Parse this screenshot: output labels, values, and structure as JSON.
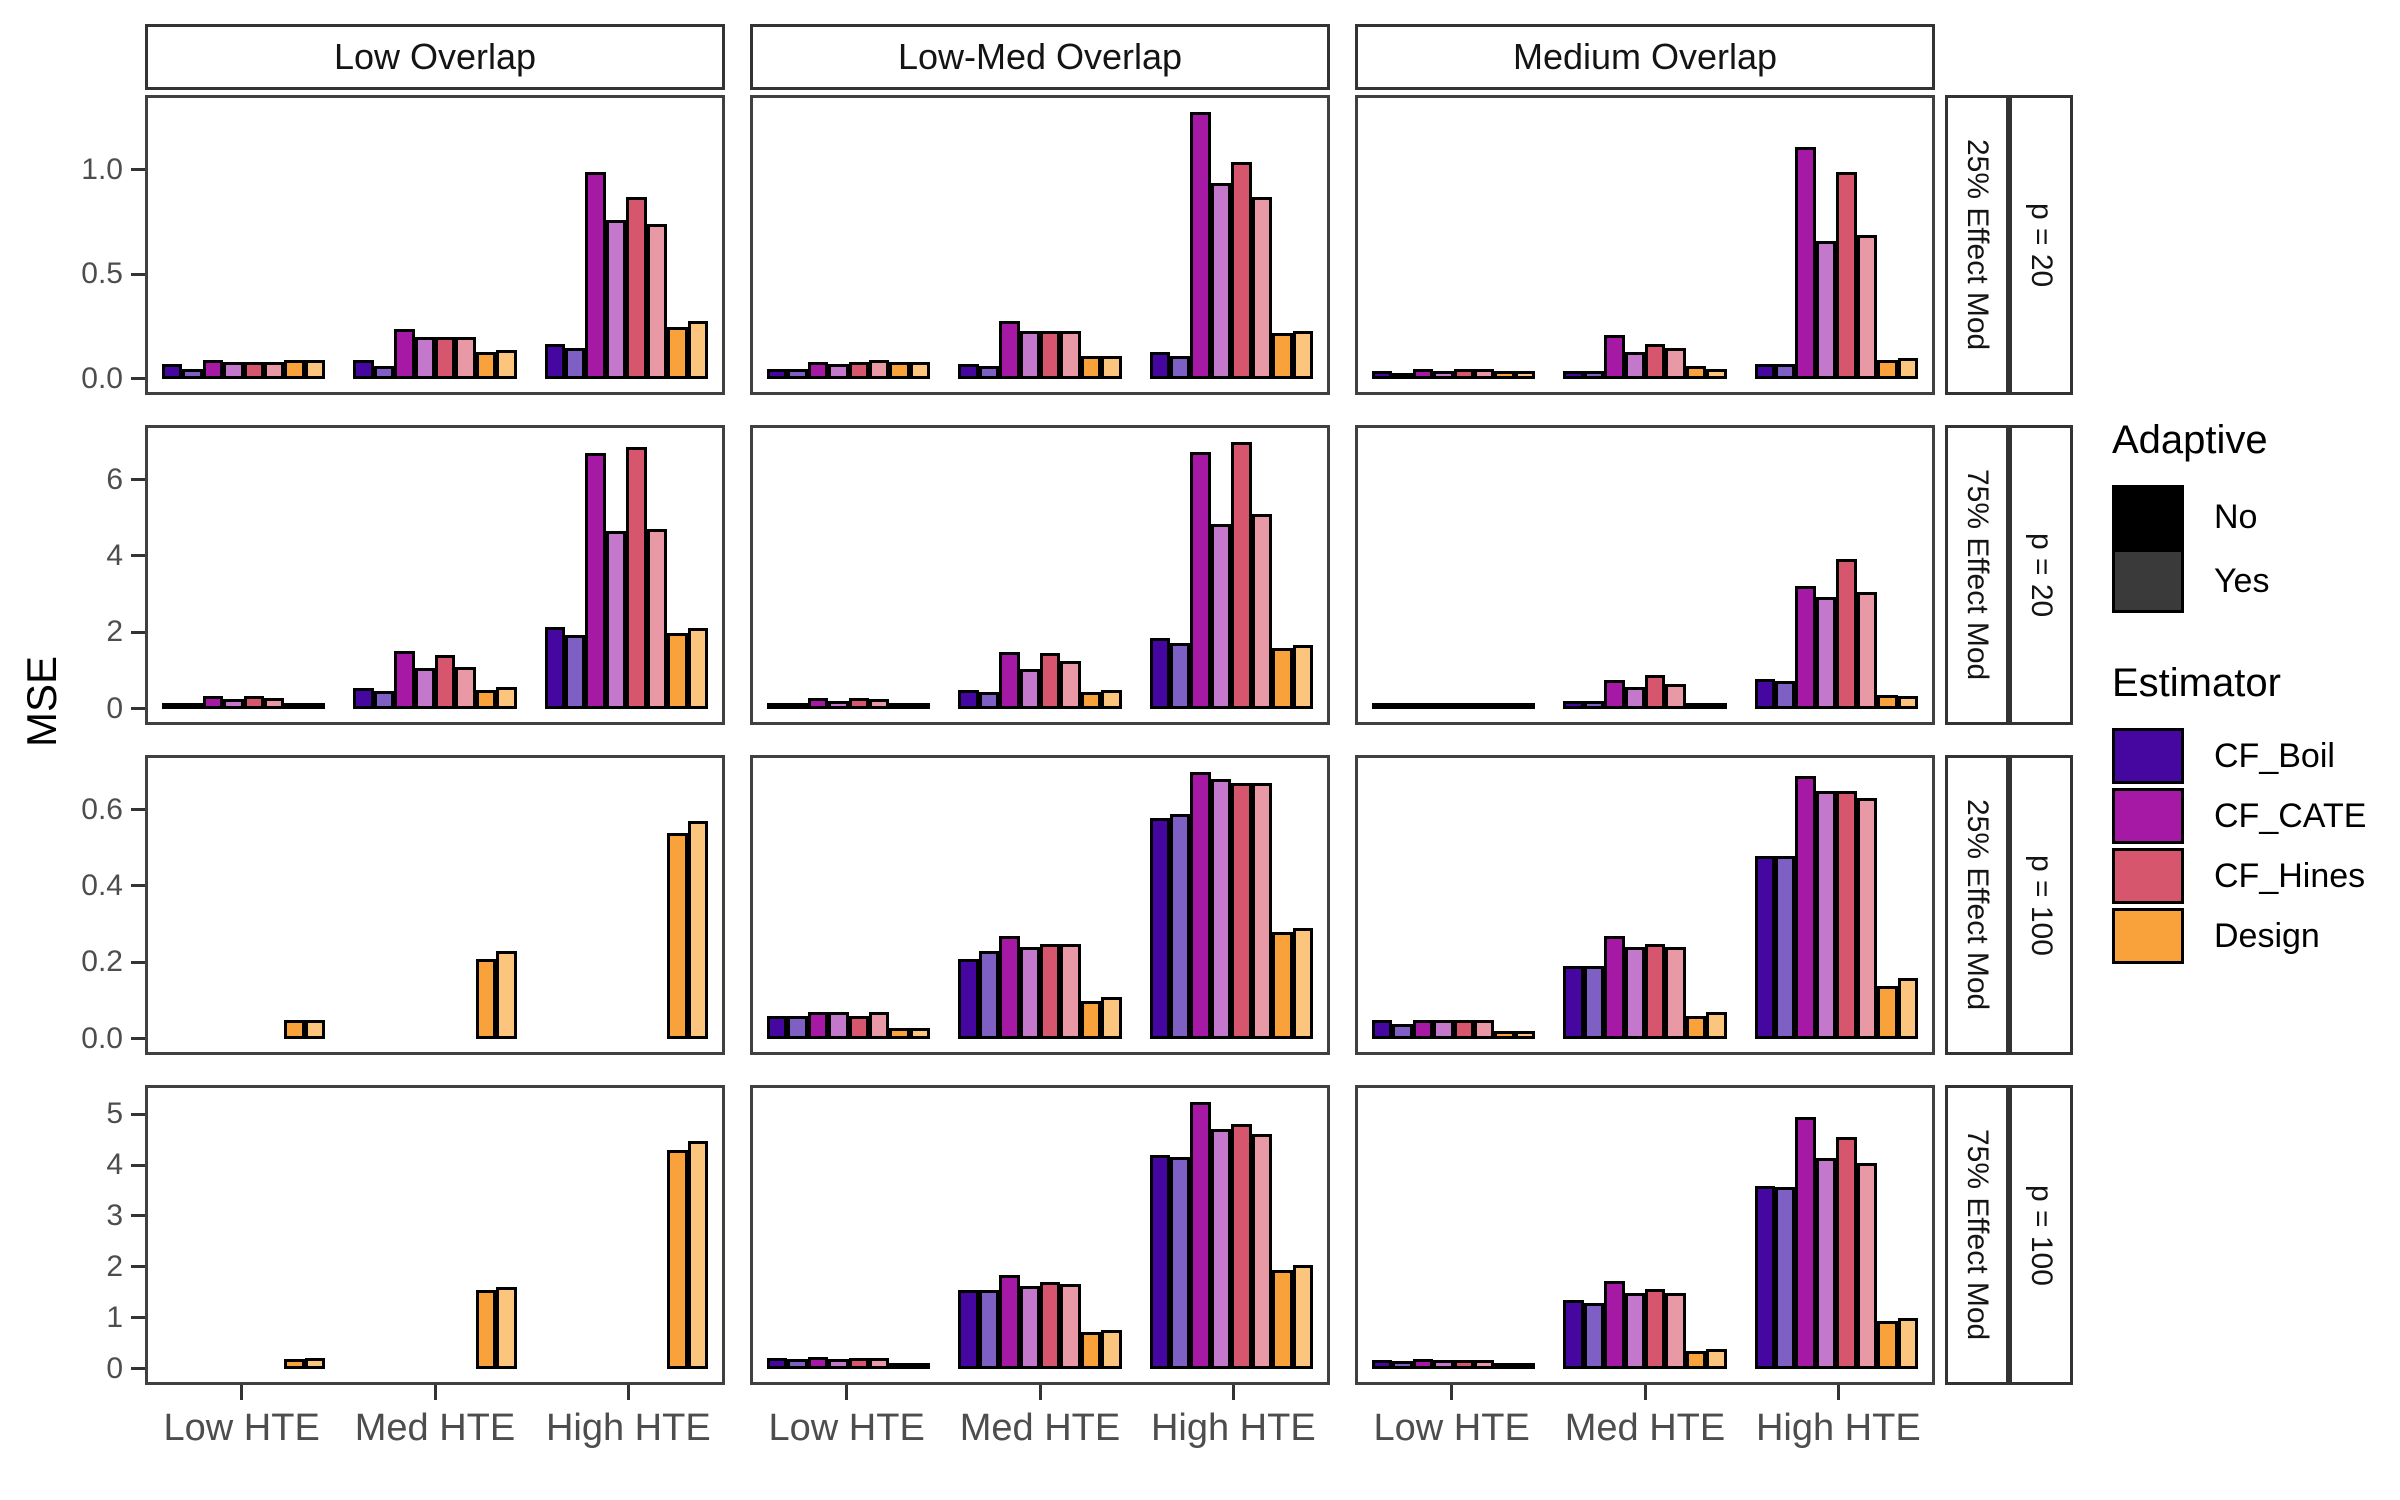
{
  "figure": {
    "ylab": "MSE",
    "legend": {
      "adaptive_title": "Adaptive",
      "adaptive_items": [
        {
          "label": "No",
          "color": "#000000"
        },
        {
          "label": "Yes",
          "color": "#3a3a3a"
        }
      ],
      "estimator_title": "Estimator",
      "estimator_items": [
        {
          "label": "CF_Boil",
          "color": "#4606a0"
        },
        {
          "label": "CF_CATE",
          "color": "#a619a5"
        },
        {
          "label": "CF_Hines",
          "color": "#d5566d"
        },
        {
          "label": "Design",
          "color": "#f9a23b"
        }
      ]
    }
  },
  "chart_data": {
    "type": "bar",
    "title": "",
    "xlabel": "",
    "ylabel": "MSE",
    "grid": false,
    "legend_position": "right",
    "col_facets": [
      "Low Overlap",
      "Low-Med Overlap",
      "Medium Overlap"
    ],
    "x_categories": [
      "Low HTE",
      "Med HTE",
      "High HTE"
    ],
    "series": [
      "CF_Boil / Adaptive No",
      "CF_Boil / Adaptive Yes",
      "CF_CATE / Adaptive No",
      "CF_CATE / Adaptive Yes",
      "CF_Hines / Adaptive No",
      "CF_Hines / Adaptive Yes",
      "Design / Adaptive No",
      "Design / Adaptive Yes"
    ],
    "bar_colors": [
      "#4606a0",
      "#7e5fc4",
      "#a619a5",
      "#c478cc",
      "#d5566d",
      "#e998a5",
      "#f9a23b",
      "#fbc57e"
    ],
    "row_facets": [
      {
        "effect_mod": "25% Effect Mod",
        "p": "p = 20",
        "ytick_labels": [
          "0.0",
          "0.5",
          "1.0"
        ],
        "ytick_values": [
          0,
          0.5,
          1.0
        ],
        "scale_max": 1.28,
        "panels": [
          [
            [
              0.07,
              0.05,
              0.09,
              0.08,
              0.08,
              0.08,
              0.09,
              0.09
            ],
            [
              0.09,
              0.06,
              0.24,
              0.2,
              0.2,
              0.2,
              0.13,
              0.14
            ],
            [
              0.17,
              0.15,
              0.99,
              0.76,
              0.87,
              0.74,
              0.25,
              0.28
            ]
          ],
          [
            [
              0.05,
              0.05,
              0.08,
              0.07,
              0.08,
              0.09,
              0.08,
              0.08
            ],
            [
              0.07,
              0.06,
              0.28,
              0.23,
              0.23,
              0.23,
              0.11,
              0.11
            ],
            [
              0.13,
              0.11,
              1.28,
              0.94,
              1.04,
              0.87,
              0.22,
              0.23
            ]
          ],
          [
            [
              0.04,
              0.03,
              0.05,
              0.04,
              0.05,
              0.05,
              0.04,
              0.04
            ],
            [
              0.04,
              0.04,
              0.21,
              0.13,
              0.17,
              0.15,
              0.06,
              0.05
            ],
            [
              0.07,
              0.07,
              1.11,
              0.66,
              0.99,
              0.69,
              0.09,
              0.1
            ]
          ]
        ]
      },
      {
        "effect_mod": "75% Effect Mod",
        "p": "p = 20",
        "ytick_labels": [
          "0",
          "2",
          "4",
          "6"
        ],
        "ytick_values": [
          0,
          2,
          4,
          6
        ],
        "scale_max": 7.0,
        "panels": [
          [
            [
              0.15,
              0.13,
              0.35,
              0.27,
              0.33,
              0.28,
              0.14,
              0.17
            ],
            [
              0.55,
              0.48,
              1.52,
              1.08,
              1.42,
              1.1,
              0.5,
              0.57
            ],
            [
              2.15,
              1.95,
              6.7,
              4.65,
              6.85,
              4.72,
              1.98,
              2.12
            ]
          ],
          [
            [
              0.12,
              0.11,
              0.3,
              0.22,
              0.3,
              0.25,
              0.1,
              0.12
            ],
            [
              0.5,
              0.45,
              1.5,
              1.05,
              1.47,
              1.25,
              0.45,
              0.5
            ],
            [
              1.85,
              1.73,
              6.72,
              4.85,
              7.0,
              5.1,
              1.6,
              1.68
            ]
          ],
          [
            [
              0.05,
              0.04,
              0.1,
              0.08,
              0.13,
              0.1,
              0.04,
              0.03
            ],
            [
              0.22,
              0.2,
              0.75,
              0.58,
              0.88,
              0.65,
              0.08,
              0.06
            ],
            [
              0.78,
              0.74,
              3.22,
              2.93,
              3.94,
              3.06,
              0.36,
              0.34
            ]
          ]
        ]
      },
      {
        "effect_mod": "25% Effect Mod",
        "p": "p = 100",
        "ytick_labels": [
          "0.0",
          "0.2",
          "0.4",
          "0.6"
        ],
        "ytick_values": [
          0,
          0.2,
          0.4,
          0.6
        ],
        "scale_max": 0.7,
        "panels": [
          [
            [
              null,
              null,
              null,
              null,
              null,
              null,
              0.05,
              0.05
            ],
            [
              null,
              null,
              null,
              null,
              null,
              null,
              0.21,
              0.23
            ],
            [
              null,
              null,
              null,
              null,
              null,
              null,
              0.54,
              0.57
            ]
          ],
          [
            [
              0.06,
              0.06,
              0.07,
              0.07,
              0.06,
              0.07,
              0.03,
              0.03
            ],
            [
              0.21,
              0.23,
              0.27,
              0.24,
              0.25,
              0.25,
              0.1,
              0.11
            ],
            [
              0.58,
              0.59,
              0.7,
              0.68,
              0.67,
              0.67,
              0.28,
              0.29
            ]
          ],
          [
            [
              0.05,
              0.04,
              0.05,
              0.05,
              0.05,
              0.05,
              0.02,
              0.02
            ],
            [
              0.19,
              0.19,
              0.27,
              0.24,
              0.25,
              0.24,
              0.06,
              0.07
            ],
            [
              0.48,
              0.48,
              0.69,
              0.65,
              0.65,
              0.63,
              0.14,
              0.16
            ]
          ]
        ]
      },
      {
        "effect_mod": "75% Effect Mod",
        "p": "p = 100",
        "ytick_labels": [
          "0",
          "1",
          "2",
          "3",
          "4",
          "5"
        ],
        "ytick_values": [
          0,
          1,
          2,
          3,
          4,
          5
        ],
        "scale_max": 5.25,
        "panels": [
          [
            [
              null,
              null,
              null,
              null,
              null,
              null,
              0.2,
              0.21
            ],
            [
              null,
              null,
              null,
              null,
              null,
              null,
              1.55,
              1.62
            ],
            [
              null,
              null,
              null,
              null,
              null,
              null,
              4.3,
              4.47
            ]
          ],
          [
            [
              0.22,
              0.2,
              0.23,
              0.2,
              0.21,
              0.21,
              0.08,
              0.1
            ],
            [
              1.55,
              1.55,
              1.85,
              1.63,
              1.7,
              1.67,
              0.72,
              0.76
            ],
            [
              4.2,
              4.17,
              5.25,
              4.72,
              4.82,
              4.62,
              1.95,
              2.05
            ]
          ],
          [
            [
              0.18,
              0.16,
              0.2,
              0.17,
              0.17,
              0.18,
              0.05,
              0.04
            ],
            [
              1.35,
              1.3,
              1.72,
              1.5,
              1.58,
              1.5,
              0.35,
              0.4
            ],
            [
              3.6,
              3.58,
              4.95,
              4.15,
              4.55,
              4.05,
              0.95,
              1.0
            ]
          ]
        ]
      }
    ]
  }
}
